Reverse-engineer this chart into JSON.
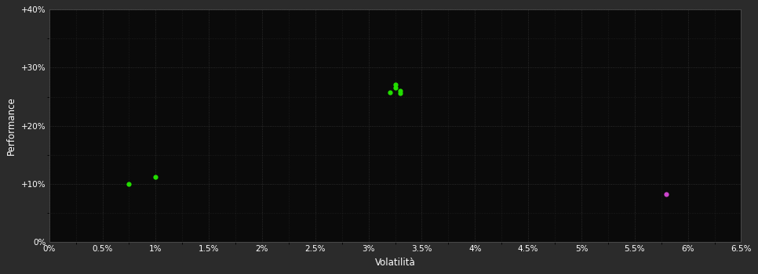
{
  "background_color": "#2b2b2b",
  "plot_bg_color": "#0a0a0a",
  "grid_color": "#3a3a3a",
  "text_color": "#ffffff",
  "xlabel": "Volatilità",
  "ylabel": "Performance",
  "xlim": [
    0.0,
    0.065
  ],
  "ylim": [
    0.0,
    0.4
  ],
  "xticks": [
    0.0,
    0.005,
    0.01,
    0.015,
    0.02,
    0.025,
    0.03,
    0.035,
    0.04,
    0.045,
    0.05,
    0.055,
    0.06,
    0.065
  ],
  "yticks": [
    0.0,
    0.1,
    0.2,
    0.3,
    0.4
  ],
  "green_points": [
    [
      0.0075,
      0.1
    ],
    [
      0.01,
      0.112
    ],
    [
      0.032,
      0.258
    ],
    [
      0.0325,
      0.265
    ],
    [
      0.033,
      0.26
    ],
    [
      0.0325,
      0.271
    ],
    [
      0.033,
      0.256
    ]
  ],
  "magenta_points": [
    [
      0.058,
      0.082
    ]
  ],
  "green_color": "#22dd00",
  "magenta_color": "#cc44cc",
  "marker_size": 4.5
}
